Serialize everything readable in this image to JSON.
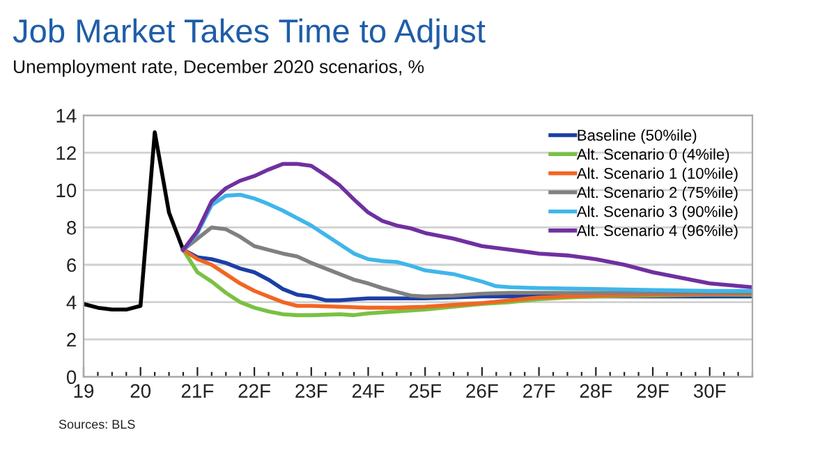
{
  "chart_data": {
    "type": "line",
    "title": "Job Market Takes Time to Adjust",
    "subtitle": "Unemployment rate, December 2020 scenarios, %",
    "annotations": [
      "Sources: BLS"
    ],
    "xlim": [
      19,
      30.75
    ],
    "xticks": [
      {
        "value": 19,
        "label": "19"
      },
      {
        "value": 19.25,
        "label": null
      },
      {
        "value": 19.5,
        "label": null
      },
      {
        "value": 19.75,
        "label": null
      },
      {
        "value": 20,
        "label": "20"
      },
      {
        "value": 20.25,
        "label": null
      },
      {
        "value": 20.5,
        "label": null
      },
      {
        "value": 20.75,
        "label": null
      },
      {
        "value": 21,
        "label": "21F"
      },
      {
        "value": 21.25,
        "label": null
      },
      {
        "value": 21.5,
        "label": null
      },
      {
        "value": 21.75,
        "label": null
      },
      {
        "value": 22,
        "label": "22F"
      },
      {
        "value": 22.25,
        "label": null
      },
      {
        "value": 22.5,
        "label": null
      },
      {
        "value": 22.75,
        "label": null
      },
      {
        "value": 23,
        "label": "23F"
      },
      {
        "value": 23.25,
        "label": null
      },
      {
        "value": 23.5,
        "label": null
      },
      {
        "value": 23.75,
        "label": null
      },
      {
        "value": 24,
        "label": "24F"
      },
      {
        "value": 24.25,
        "label": null
      },
      {
        "value": 24.5,
        "label": null
      },
      {
        "value": 24.75,
        "label": null
      },
      {
        "value": 25,
        "label": "25F"
      },
      {
        "value": 25.25,
        "label": null
      },
      {
        "value": 25.5,
        "label": null
      },
      {
        "value": 25.75,
        "label": null
      },
      {
        "value": 26,
        "label": "26F"
      },
      {
        "value": 26.25,
        "label": null
      },
      {
        "value": 26.5,
        "label": null
      },
      {
        "value": 26.75,
        "label": null
      },
      {
        "value": 27,
        "label": "27F"
      },
      {
        "value": 27.25,
        "label": null
      },
      {
        "value": 27.5,
        "label": null
      },
      {
        "value": 27.75,
        "label": null
      },
      {
        "value": 28,
        "label": "28F"
      },
      {
        "value": 28.25,
        "label": null
      },
      {
        "value": 28.5,
        "label": null
      },
      {
        "value": 28.75,
        "label": null
      },
      {
        "value": 29,
        "label": "29F"
      },
      {
        "value": 29.25,
        "label": null
      },
      {
        "value": 29.5,
        "label": null
      },
      {
        "value": 29.75,
        "label": null
      },
      {
        "value": 30,
        "label": "30F"
      },
      {
        "value": 30.25,
        "label": null
      },
      {
        "value": 30.5,
        "label": null
      },
      {
        "value": 30.75,
        "label": null
      }
    ],
    "ylim": [
      0,
      14
    ],
    "yticks": [
      0,
      2,
      4,
      6,
      8,
      10,
      12,
      14
    ],
    "grid": "y",
    "legend": "top right",
    "marker": "none",
    "line_style": "solid",
    "series": [
      {
        "color": "#000000",
        "x": [
          19,
          19.25,
          19.5,
          19.75,
          20,
          20.25,
          20.5,
          20.75
        ],
        "values": [
          3.9,
          3.7,
          3.6,
          3.6,
          3.8,
          13.1,
          8.8,
          6.8
        ]
      },
      {
        "name": "Baseline (50%ile)",
        "color": "#1b3fa6",
        "x": [
          20.75,
          21,
          21.25,
          21.5,
          21.75,
          22,
          22.25,
          22.5,
          22.75,
          23,
          23.25,
          23.5,
          23.75,
          24,
          25,
          26,
          27,
          28,
          29,
          30.75
        ],
        "values": [
          6.8,
          6.4,
          6.3,
          6.1,
          5.8,
          5.6,
          5.2,
          4.7,
          4.4,
          4.3,
          4.1,
          4.1,
          4.15,
          4.2,
          4.2,
          4.3,
          4.3,
          4.3,
          4.3,
          4.3
        ]
      },
      {
        "name": "Alt. Scenario 0 (4%ile)",
        "color": "#7ac143",
        "x": [
          20.75,
          21,
          21.25,
          21.5,
          21.75,
          22,
          22.25,
          22.5,
          22.75,
          23,
          23.5,
          23.75,
          24,
          24.5,
          25,
          25.5,
          26,
          26.5,
          27,
          27.5,
          28,
          29,
          30,
          30.75
        ],
        "values": [
          6.8,
          5.6,
          5.1,
          4.5,
          4.0,
          3.7,
          3.5,
          3.35,
          3.3,
          3.3,
          3.35,
          3.3,
          3.4,
          3.5,
          3.6,
          3.75,
          3.9,
          4.0,
          4.15,
          4.25,
          4.3,
          4.35,
          4.4,
          4.4
        ]
      },
      {
        "name": "Alt. Scenario 1 (10%ile)",
        "color": "#f26522",
        "x": [
          20.75,
          21,
          21.25,
          21.5,
          21.75,
          22,
          22.25,
          22.5,
          22.75,
          23,
          23.5,
          24,
          24.5,
          25,
          25.5,
          26,
          26.5,
          27,
          27.5,
          28,
          29,
          30.75
        ],
        "values": [
          6.8,
          6.3,
          6.0,
          5.5,
          5.0,
          4.6,
          4.3,
          4.0,
          3.8,
          3.8,
          3.75,
          3.7,
          3.7,
          3.75,
          3.85,
          3.95,
          4.1,
          4.25,
          4.3,
          4.35,
          4.4,
          4.45
        ]
      },
      {
        "name": "Alt. Scenario 2 (75%ile)",
        "color": "#808080",
        "x": [
          20.75,
          21,
          21.25,
          21.5,
          21.75,
          22,
          22.25,
          22.5,
          22.75,
          23,
          23.25,
          23.5,
          23.75,
          24,
          24.25,
          24.5,
          24.75,
          25,
          25.5,
          26,
          26.5,
          27,
          28,
          29,
          30.75
        ],
        "values": [
          6.8,
          7.4,
          8.0,
          7.9,
          7.5,
          7.0,
          6.8,
          6.6,
          6.45,
          6.1,
          5.8,
          5.5,
          5.2,
          5.0,
          4.75,
          4.55,
          4.35,
          4.3,
          4.35,
          4.45,
          4.5,
          4.5,
          4.5,
          4.5,
          4.5
        ]
      },
      {
        "name": "Alt. Scenario 3 (90%ile)",
        "color": "#3fb6ea",
        "x": [
          20.75,
          21,
          21.25,
          21.5,
          21.75,
          22,
          22.25,
          22.5,
          22.75,
          23,
          23.25,
          23.5,
          23.75,
          24,
          24.25,
          24.5,
          24.75,
          25,
          25.5,
          26,
          26.25,
          26.5,
          27,
          28,
          29,
          30,
          30.75
        ],
        "values": [
          6.8,
          7.7,
          9.2,
          9.7,
          9.75,
          9.55,
          9.25,
          8.9,
          8.5,
          8.1,
          7.6,
          7.1,
          6.6,
          6.3,
          6.2,
          6.15,
          5.95,
          5.7,
          5.5,
          5.1,
          4.85,
          4.8,
          4.75,
          4.7,
          4.65,
          4.6,
          4.6
        ]
      },
      {
        "name": "Alt. Scenario 4 (96%ile)",
        "color": "#7030a0",
        "x": [
          20.75,
          21,
          21.25,
          21.5,
          21.75,
          22,
          22.25,
          22.5,
          22.75,
          23,
          23.25,
          23.5,
          23.75,
          24,
          24.25,
          24.5,
          24.75,
          25,
          25.5,
          26,
          26.5,
          27,
          27.5,
          28,
          28.5,
          29,
          29.5,
          30,
          30.75
        ],
        "values": [
          6.8,
          7.8,
          9.4,
          10.1,
          10.5,
          10.75,
          11.1,
          11.4,
          11.4,
          11.3,
          10.8,
          10.25,
          9.5,
          8.8,
          8.35,
          8.1,
          7.95,
          7.7,
          7.4,
          7.0,
          6.8,
          6.6,
          6.5,
          6.3,
          6.0,
          5.6,
          5.3,
          5.0,
          4.8
        ]
      }
    ]
  }
}
